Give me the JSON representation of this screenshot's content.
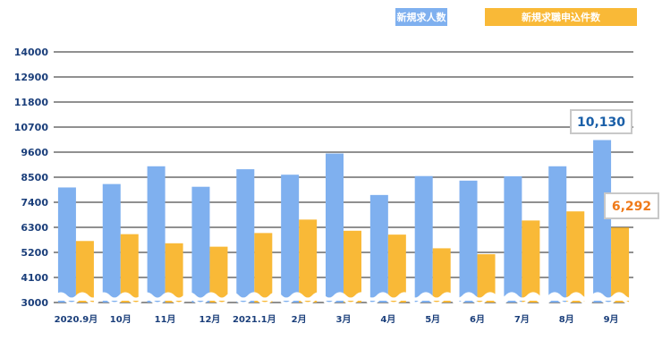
{
  "legend": {
    "series1_label": "新規求人数",
    "series2_label": "新規求職申込件数"
  },
  "callouts": {
    "series1_last": "10,130",
    "series2_last": "6,292"
  },
  "colors": {
    "series1": "#7fb0ef",
    "series2": "#f9b937",
    "axis_text": "#1a3e7a",
    "callout1_text": "#1a5fa8",
    "callout2_text": "#ef7a1a",
    "grid": "#222222"
  },
  "chart_data": {
    "type": "bar",
    "categories": [
      "2020.9月",
      "10月",
      "11月",
      "12月",
      "2021.1月",
      "2月",
      "3月",
      "4月",
      "5月",
      "6月",
      "7月",
      "8月",
      "9月"
    ],
    "series": [
      {
        "name": "新規求人数",
        "values": [
          8050,
          8200,
          8980,
          8080,
          8850,
          8610,
          9540,
          7720,
          8550,
          8350,
          8540,
          8980,
          10130
        ]
      },
      {
        "name": "新規求職申込件数",
        "values": [
          5700,
          6000,
          5600,
          5450,
          6050,
          6640,
          6150,
          5980,
          5380,
          5120,
          6600,
          7000,
          6292
        ]
      }
    ],
    "yticks": [
      3000,
      4100,
      5200,
      6300,
      7400,
      8500,
      9600,
      10700,
      11800,
      12900,
      14000
    ],
    "ylim": [
      3000,
      14000
    ],
    "axis_break": true,
    "grid": true,
    "legend_position": "top-right",
    "title": "",
    "xlabel": "",
    "ylabel": ""
  }
}
